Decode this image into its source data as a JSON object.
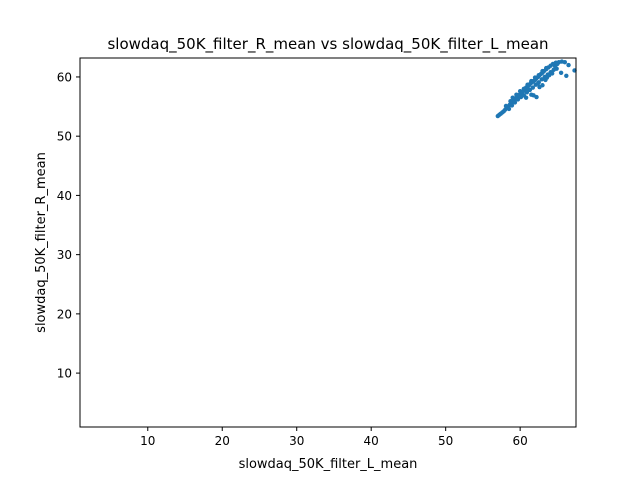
{
  "chart_data": {
    "type": "scatter",
    "title": "slowdaq_50K_filter_R_mean vs slowdaq_50K_filter_L_mean",
    "xlabel": "slowdaq_50K_filter_L_mean",
    "ylabel": "slowdaq_50K_filter_R_mean",
    "xlim": [
      0.9,
      67.5
    ],
    "ylim": [
      0.9,
      63.2
    ],
    "xticks": [
      10,
      20,
      30,
      40,
      50,
      60
    ],
    "yticks": [
      10,
      20,
      30,
      40,
      50,
      60
    ],
    "grid": false,
    "marker_color": "#1f77b4",
    "series": [
      {
        "points": [
          [
            57.0,
            53.4
          ],
          [
            57.2,
            53.6
          ],
          [
            57.4,
            53.8
          ],
          [
            57.6,
            54.0
          ],
          [
            57.8,
            54.2
          ],
          [
            58.0,
            54.5
          ],
          [
            58.2,
            54.8
          ],
          [
            58.4,
            55.0
          ],
          [
            58.6,
            55.3
          ],
          [
            58.8,
            55.6
          ],
          [
            59.0,
            55.8
          ],
          [
            59.2,
            56.1
          ],
          [
            59.4,
            56.4
          ],
          [
            59.6,
            56.6
          ],
          [
            59.8,
            56.9
          ],
          [
            60.0,
            57.1
          ],
          [
            60.2,
            57.3
          ],
          [
            60.4,
            57.6
          ],
          [
            60.6,
            57.9
          ],
          [
            60.8,
            58.2
          ],
          [
            61.0,
            58.4
          ],
          [
            61.2,
            58.6
          ],
          [
            61.4,
            58.9
          ],
          [
            61.6,
            59.1
          ],
          [
            61.8,
            59.3
          ],
          [
            62.0,
            59.5
          ],
          [
            62.2,
            59.8
          ],
          [
            62.4,
            60.0
          ],
          [
            62.6,
            60.3
          ],
          [
            62.8,
            60.5
          ],
          [
            63.0,
            60.7
          ],
          [
            63.2,
            61.0
          ],
          [
            63.5,
            61.3
          ],
          [
            63.8,
            61.6
          ],
          [
            64.1,
            61.9
          ],
          [
            64.4,
            62.2
          ],
          [
            64.8,
            62.4
          ],
          [
            65.2,
            62.5
          ],
          [
            65.6,
            62.6
          ],
          [
            66.0,
            62.5
          ],
          [
            58.5,
            54.6
          ],
          [
            58.9,
            55.2
          ],
          [
            59.3,
            55.7
          ],
          [
            59.7,
            56.2
          ],
          [
            60.1,
            56.6
          ],
          [
            60.5,
            56.9
          ],
          [
            60.9,
            57.4
          ],
          [
            61.3,
            57.8
          ],
          [
            61.7,
            58.2
          ],
          [
            62.1,
            58.7
          ],
          [
            62.5,
            59.1
          ],
          [
            62.9,
            59.6
          ],
          [
            63.3,
            60.0
          ],
          [
            63.7,
            60.4
          ],
          [
            64.1,
            60.8
          ],
          [
            64.5,
            61.2
          ],
          [
            59.0,
            56.5
          ],
          [
            59.5,
            57.0
          ],
          [
            60.0,
            57.6
          ],
          [
            60.5,
            58.0
          ],
          [
            61.0,
            58.7
          ],
          [
            61.5,
            59.3
          ],
          [
            62.0,
            59.9
          ],
          [
            62.5,
            60.3
          ],
          [
            63.0,
            61.0
          ],
          [
            63.5,
            61.5
          ],
          [
            60.2,
            56.8
          ],
          [
            60.8,
            56.5
          ],
          [
            61.5,
            57.0
          ],
          [
            61.8,
            56.9
          ],
          [
            62.2,
            56.6
          ],
          [
            62.6,
            58.3
          ],
          [
            63.0,
            58.6
          ],
          [
            63.4,
            59.5
          ],
          [
            63.9,
            60.3
          ],
          [
            64.3,
            60.6
          ],
          [
            64.9,
            61.4
          ],
          [
            65.5,
            60.7
          ],
          [
            66.2,
            60.2
          ],
          [
            66.5,
            62.0
          ],
          [
            67.3,
            61.1
          ],
          [
            65.0,
            62.2
          ],
          [
            64.7,
            61.8
          ],
          [
            63.6,
            59.9
          ],
          [
            62.4,
            58.9
          ],
          [
            61.1,
            57.9
          ],
          [
            60.3,
            57.4
          ],
          [
            59.6,
            56.9
          ],
          [
            58.7,
            55.9
          ],
          [
            58.1,
            55.1
          ]
        ]
      }
    ]
  }
}
